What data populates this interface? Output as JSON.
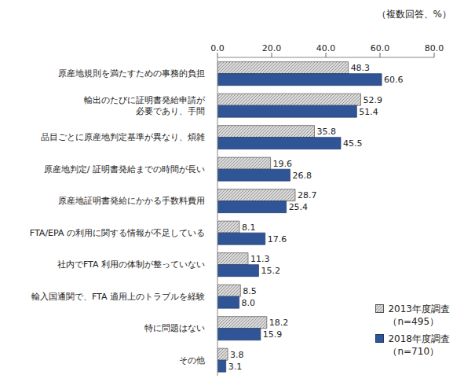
{
  "chart_data": {
    "type": "bar",
    "orientation": "horizontal",
    "xlabel": "（複数回答、%）",
    "categories": [
      "原産地規則を満たすための事務的負担",
      "輸出のたびに証明書発給申請が\n必要であり、手間",
      "品目ごとに原産地判定基準が異なり、煩雑",
      "原産地判定/ 証明書発給までの時間が長い",
      "原産地証明書発給にかかる手数料費用",
      "FTA/EPA の利用に関する情報が不足している",
      "社内でFTA 利用の体制が整っていない",
      "輸入国通関で、FTA 適用上のトラブルを経験",
      "特に問題はない",
      "その他"
    ],
    "series": [
      {
        "name": "2013年度調査\n（n=495）",
        "color": "#d9d9d9",
        "values": [
          48.3,
          52.9,
          35.8,
          19.6,
          28.7,
          8.1,
          11.3,
          8.5,
          18.2,
          3.8
        ],
        "value_labels": [
          "48.3",
          "52.9",
          "35.8",
          "19.6",
          "28.7",
          "8.1",
          "11.3",
          "8.5",
          "18.2",
          "3.8"
        ]
      },
      {
        "name": "2018年度調査\n（n=710）",
        "color": "#2f5597",
        "values": [
          60.6,
          51.4,
          45.5,
          26.8,
          25.4,
          17.6,
          15.2,
          8.0,
          15.9,
          3.1
        ],
        "value_labels": [
          "60.6",
          "51.4",
          "45.5",
          "26.8",
          "25.4",
          "17.6",
          "15.2",
          "8.0",
          "15.9",
          "3.1"
        ]
      }
    ],
    "xlim": [
      0,
      80
    ],
    "xticks": [
      {
        "value": 0,
        "label": "0.0"
      },
      {
        "value": 20,
        "label": "20.0"
      },
      {
        "value": 40,
        "label": "40.0"
      },
      {
        "value": 60,
        "label": "60.0"
      },
      {
        "value": 80,
        "label": "80.0"
      }
    ],
    "grid": false,
    "data_labels": true,
    "legend": "bottom-right"
  }
}
